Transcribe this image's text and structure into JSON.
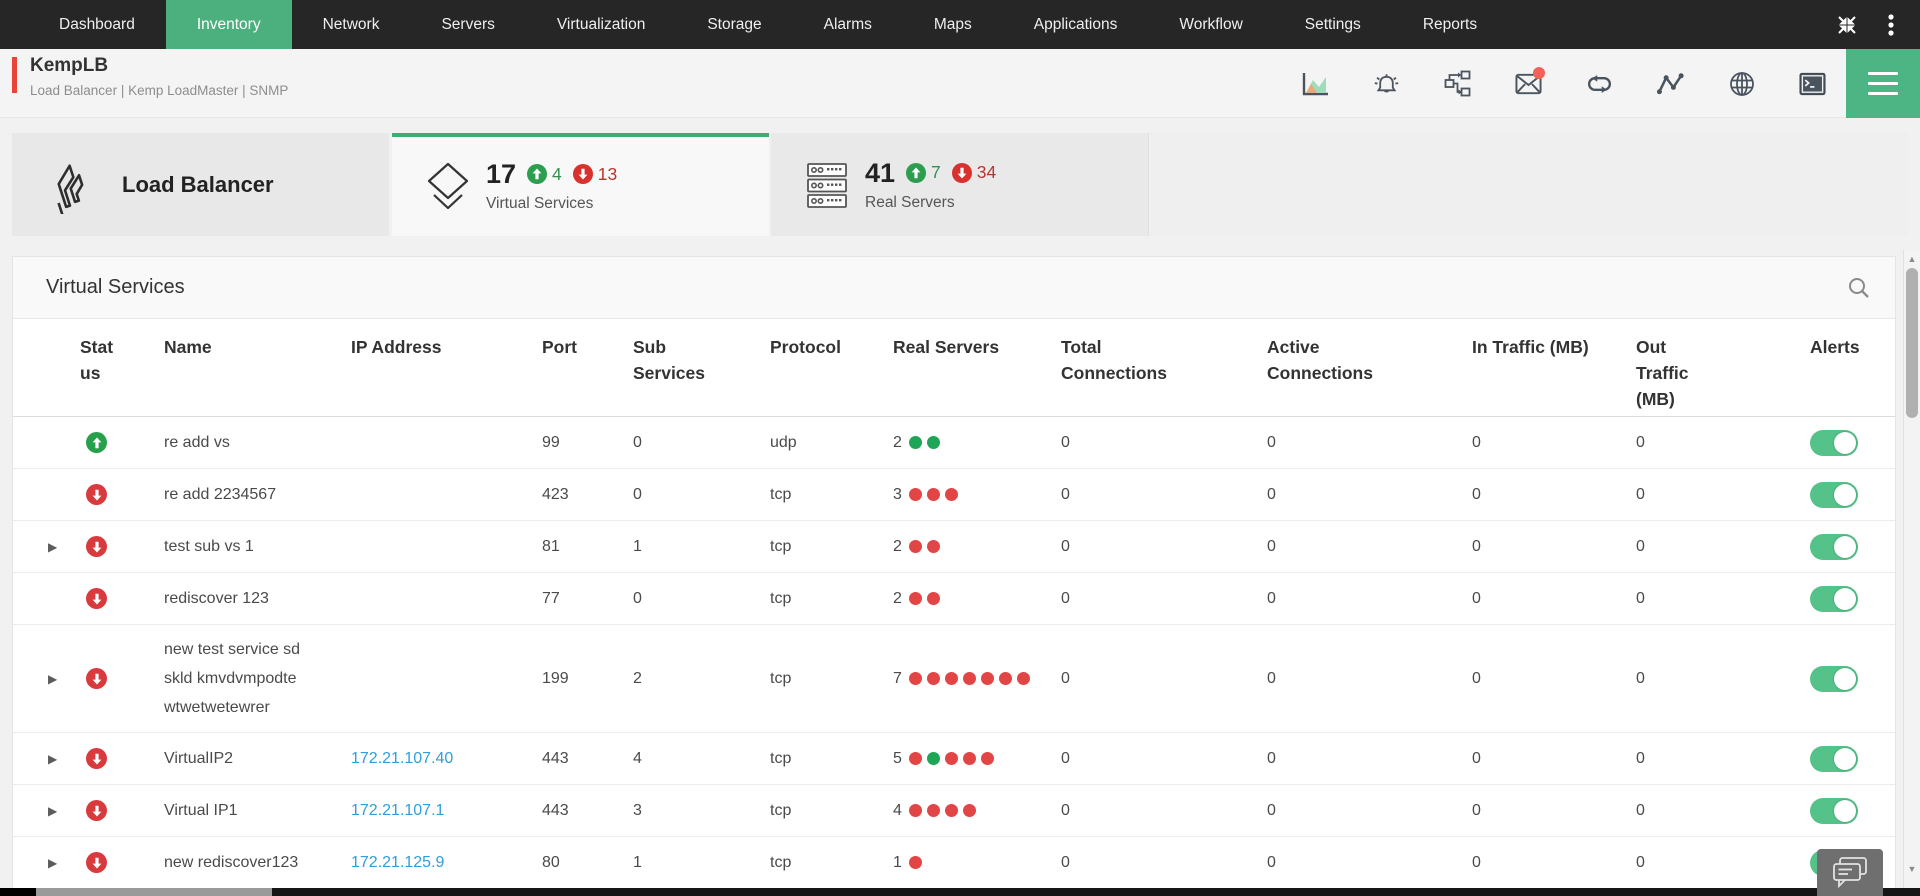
{
  "navbar": {
    "items": [
      "Dashboard",
      "Inventory",
      "Network",
      "Servers",
      "Virtualization",
      "Storage",
      "Alarms",
      "Maps",
      "Applications",
      "Workflow",
      "Settings",
      "Reports"
    ],
    "active_item": "Inventory",
    "active_color": "#4caf7e"
  },
  "device_header": {
    "title": "KempLB",
    "subtitle": "Load Balancer | Kemp LoadMaster  | SNMP",
    "accent_color": "#e8443a",
    "toolbar_icons": [
      "area-chart-icon",
      "alarm-bell-icon",
      "workflow-icon",
      "mail-icon",
      "loop-icon",
      "performance-graph-icon",
      "globe-icon",
      "terminal-icon"
    ],
    "mail_has_notification": true,
    "menu_color": "#4db583"
  },
  "tabs": {
    "section_label": "Load Balancer",
    "items": [
      {
        "label": "Virtual Services",
        "count": "17",
        "up": "4",
        "down": "13",
        "active": true
      },
      {
        "label": "Real Servers",
        "count": "41",
        "up": "7",
        "down": "34",
        "active": false
      }
    ]
  },
  "panel": {
    "title": "Virtual Services",
    "columns": [
      "Status",
      "Name",
      "IP Address",
      "Port",
      "Sub Services",
      "Protocol",
      "Real Servers",
      "Total Connections",
      "Active Connections",
      "In Traffic (MB)",
      "Out Traffic (MB)",
      "Alerts"
    ],
    "rows": [
      {
        "expandable": false,
        "status": "up",
        "name": "re add vs",
        "ip": "",
        "port": "99",
        "sub_services": "0",
        "protocol": "udp",
        "real_servers_count": "2",
        "real_server_states": [
          "green",
          "green"
        ],
        "total_connections": "0",
        "active_connections": "0",
        "in_traffic_mb": "0",
        "out_traffic_mb": "0",
        "alerts_enabled": true
      },
      {
        "expandable": false,
        "status": "down",
        "name": "re add 2234567",
        "ip": "",
        "port": "423",
        "sub_services": "0",
        "protocol": "tcp",
        "real_servers_count": "3",
        "real_server_states": [
          "red",
          "red",
          "red"
        ],
        "total_connections": "0",
        "active_connections": "0",
        "in_traffic_mb": "0",
        "out_traffic_mb": "0",
        "alerts_enabled": true
      },
      {
        "expandable": true,
        "status": "down",
        "name": "test sub vs 1",
        "ip": "",
        "port": "81",
        "sub_services": "1",
        "protocol": "tcp",
        "real_servers_count": "2",
        "real_server_states": [
          "red",
          "red"
        ],
        "total_connections": "0",
        "active_connections": "0",
        "in_traffic_mb": "0",
        "out_traffic_mb": "0",
        "alerts_enabled": true
      },
      {
        "expandable": false,
        "status": "down",
        "name": "rediscover 123",
        "ip": "",
        "port": "77",
        "sub_services": "0",
        "protocol": "tcp",
        "real_servers_count": "2",
        "real_server_states": [
          "red",
          "red"
        ],
        "total_connections": "0",
        "active_connections": "0",
        "in_traffic_mb": "0",
        "out_traffic_mb": "0",
        "alerts_enabled": true
      },
      {
        "expandable": true,
        "status": "down",
        "name": "new test service sd skld kmvdvmpodte wtwetwetewrer",
        "ip": "",
        "port": "199",
        "sub_services": "2",
        "protocol": "tcp",
        "real_servers_count": "7",
        "real_server_states": [
          "red",
          "red",
          "red",
          "red",
          "red",
          "red",
          "red"
        ],
        "total_connections": "0",
        "active_connections": "0",
        "in_traffic_mb": "0",
        "out_traffic_mb": "0",
        "alerts_enabled": true,
        "tall": true
      },
      {
        "expandable": true,
        "status": "down",
        "name": "VirtualIP2",
        "ip": "172.21.107.40",
        "port": "443",
        "sub_services": "4",
        "protocol": "tcp",
        "real_servers_count": "5",
        "real_server_states": [
          "red",
          "green",
          "red",
          "red",
          "red"
        ],
        "total_connections": "0",
        "active_connections": "0",
        "in_traffic_mb": "0",
        "out_traffic_mb": "0",
        "alerts_enabled": true
      },
      {
        "expandable": true,
        "status": "down",
        "name": "Virtual IP1",
        "ip": "172.21.107.1",
        "port": "443",
        "sub_services": "3",
        "protocol": "tcp",
        "real_servers_count": "4",
        "real_server_states": [
          "red",
          "red",
          "red",
          "red"
        ],
        "total_connections": "0",
        "active_connections": "0",
        "in_traffic_mb": "0",
        "out_traffic_mb": "0",
        "alerts_enabled": true
      },
      {
        "expandable": true,
        "status": "down",
        "name": "new rediscover123",
        "ip": "172.21.125.9",
        "port": "80",
        "sub_services": "1",
        "protocol": "tcp",
        "real_servers_count": "1",
        "real_server_states": [
          "red"
        ],
        "total_connections": "0",
        "active_connections": "0",
        "in_traffic_mb": "0",
        "out_traffic_mb": "0",
        "alerts_enabled": true
      }
    ],
    "status_colors": {
      "up": "#27a04b",
      "down": "#d93a3e"
    },
    "dot_colors": {
      "green": "#1ea656",
      "red": "#e24545"
    },
    "link_color": "#2f9fd9",
    "toggle_on_color": "#55c289"
  }
}
